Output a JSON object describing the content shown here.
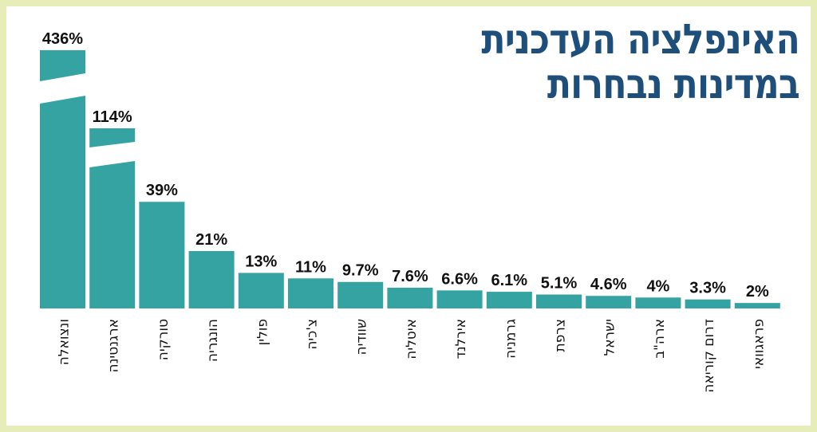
{
  "chart_data": {
    "type": "bar",
    "title_lines": [
      "האינפלציה העדכנית",
      "במדינות נבחרות"
    ],
    "categories": [
      "ונצואלה",
      "ארגנטינה",
      "טורקיה",
      "הונגריה",
      "פולין",
      "צ'כיה",
      "שוודיה",
      "איטליה",
      "אירלנד",
      "גרמניה",
      "צרפת",
      "ישראל",
      "ארה\"ב",
      "דרום קוריאה",
      "פראגוואי"
    ],
    "values": [
      436,
      114,
      39,
      21,
      13,
      11,
      9.7,
      7.6,
      6.6,
      6.1,
      5.1,
      4.6,
      4,
      3.3,
      2
    ],
    "value_labels": [
      "436%",
      "114%",
      "39%",
      "21%",
      "13%",
      "11%",
      "9.7%",
      "7.6%",
      "6.6%",
      "6.1%",
      "5.1%",
      "4.6%",
      "4%",
      "3.3%",
      "2%"
    ],
    "broken_axis_bars": [
      "ונצואלה",
      "ארגנטינה"
    ],
    "bar_color": "#36a3a3",
    "title_color": "#1d4f7a",
    "grid": false,
    "legend": "none"
  }
}
